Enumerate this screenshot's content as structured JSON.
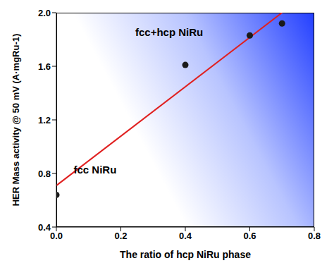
{
  "chart_data": {
    "type": "scatter",
    "xlabel": "The ratio of hcp NiRu phase",
    "ylabel": "HER Mass activity @ 50 mV (A·mgRu-1)",
    "xlim": [
      0,
      0.8
    ],
    "xticks": [
      {
        "value": 0,
        "label": "0.0"
      },
      0.2,
      0.4,
      0.6,
      0.8
    ],
    "ylim": [
      0.4,
      2.0
    ],
    "yticks": [
      0.4,
      0.8,
      1.2,
      1.6,
      {
        "value": 2.0,
        "label": "2.0"
      }
    ],
    "series": [
      {
        "type": "scatter",
        "color": "#1a1a1a",
        "marker": "circle",
        "x": [
          0,
          0.4,
          0.6,
          0.7
        ],
        "values": [
          0.64,
          1.61,
          1.83,
          1.92
        ]
      },
      {
        "type": "line",
        "color": "#e02020",
        "line_style": "solid",
        "x": [
          0,
          0.7
        ],
        "values": [
          0.71,
          2.0
        ]
      }
    ],
    "annotations": [
      "fcc+hcp NiRu",
      "fcc NiRu"
    ]
  }
}
